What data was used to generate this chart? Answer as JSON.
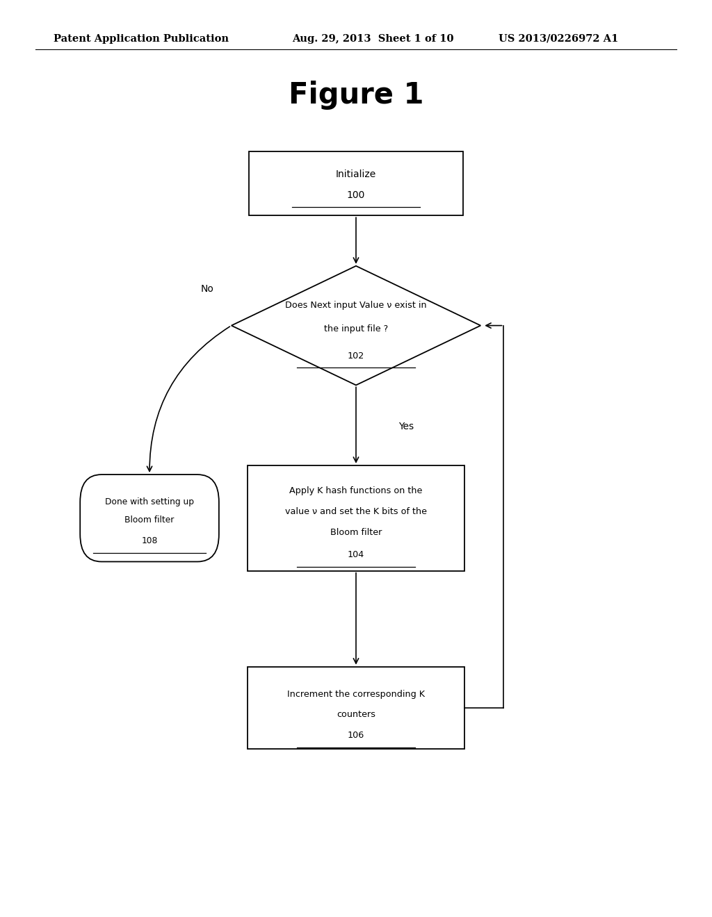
{
  "bg_color": "#ffffff",
  "line_color": "#000000",
  "text_color": "#000000",
  "header_left": "Patent Application Publication",
  "header_mid": "Aug. 29, 2013  Sheet 1 of 10",
  "header_right": "US 2013/0226972 A1",
  "title": "Figure 1",
  "init_label": "Initialize",
  "init_id": "100",
  "dec_line1": "Does Next input Value v exist in",
  "dec_line2": "the input file ?",
  "dec_id": "102",
  "apply_line1": "Apply K hash functions on the",
  "apply_line2": "value v and set the K bits of the",
  "apply_line3": "Bloom filter",
  "apply_id": "104",
  "inc_line1": "Increment the corresponding K",
  "inc_line2": "counters",
  "inc_id": "106",
  "done_line1": "Done with setting up",
  "done_line2": "Bloom filter",
  "done_id": "108",
  "yes_label": "Yes",
  "no_label": "No"
}
